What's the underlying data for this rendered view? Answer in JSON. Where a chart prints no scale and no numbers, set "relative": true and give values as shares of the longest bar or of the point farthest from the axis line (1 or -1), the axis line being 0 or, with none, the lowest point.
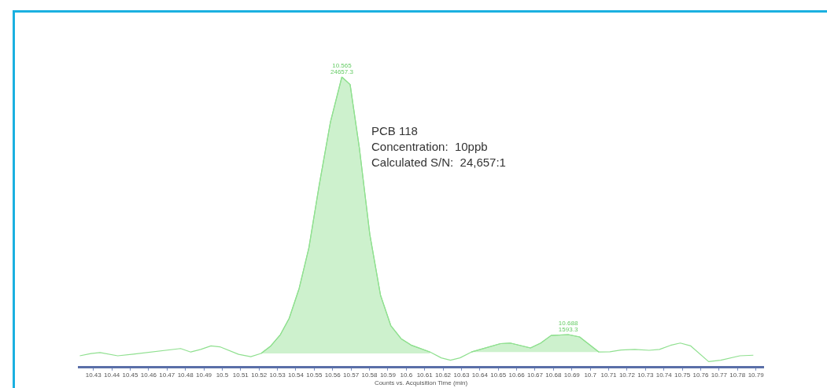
{
  "chart_data": {
    "type": "line",
    "relative": true,
    "xlabel": "Counts vs. Acquisition Time (min)",
    "xlim": [
      10.422,
      10.794
    ],
    "xticks": [
      10.43,
      10.44,
      10.45,
      10.46,
      10.47,
      10.48,
      10.49,
      10.5,
      10.51,
      10.52,
      10.53,
      10.54,
      10.55,
      10.56,
      10.57,
      10.58,
      10.59,
      10.6,
      10.61,
      10.62,
      10.63,
      10.64,
      10.65,
      10.66,
      10.67,
      10.68,
      10.69,
      10.7,
      10.71,
      10.72,
      10.73,
      10.74,
      10.75,
      10.76,
      10.77,
      10.78,
      10.79
    ],
    "grid": false,
    "annotations": [
      "PCB 118",
      "Concentration:  10ppb",
      "Calculated S/N:  24,657:1",
      {
        "text": "10.565\n24657.3",
        "x": 10.565,
        "y": 1
      },
      {
        "text": "10.688\n1593.3",
        "x": 10.688,
        "y": 0.113
      }
    ],
    "series": [
      {
        "type": "line",
        "color": "#90e090",
        "x": [
          10.4226,
          10.4287,
          10.4336,
          10.4432,
          10.4518,
          10.4774,
          10.4829,
          10.4883,
          10.4939,
          10.4987,
          10.5089,
          10.5155,
          10.5211,
          10.5264,
          10.5316,
          10.5364,
          10.5418,
          10.5471,
          10.5527,
          10.5588,
          10.565,
          10.5695,
          10.5746,
          10.5802,
          10.586,
          10.5916,
          10.5972,
          10.6026,
          10.613,
          10.619,
          10.624,
          10.6292,
          10.6354,
          10.6512,
          10.6565,
          10.6675,
          10.6731,
          10.6787,
          10.688,
          10.6942,
          10.7047,
          10.7107,
          10.7167,
          10.7242,
          10.732,
          10.7376,
          10.7436,
          10.7489,
          10.7546,
          10.7643,
          10.7709,
          10.7813,
          10.7886
        ],
        "values": [
          0.04,
          0.048,
          0.051,
          0.04,
          0.046,
          0.065,
          0.053,
          0.062,
          0.074,
          0.071,
          0.045,
          0.037,
          0.048,
          0.074,
          0.113,
          0.169,
          0.272,
          0.412,
          0.628,
          0.845,
          1,
          0.974,
          0.752,
          0.458,
          0.249,
          0.144,
          0.099,
          0.077,
          0.053,
          0.033,
          0.025,
          0.033,
          0.053,
          0.082,
          0.084,
          0.067,
          0.084,
          0.11,
          0.113,
          0.105,
          0.053,
          0.054,
          0.06,
          0.062,
          0.059,
          0.062,
          0.076,
          0.084,
          0.074,
          0.02,
          0.025,
          0.04,
          0.042
        ]
      },
      {
        "type": "area",
        "color": "#90e090",
        "x": [
          10.5211,
          10.5264,
          10.5316,
          10.5364,
          10.5418,
          10.5471,
          10.5527,
          10.5588,
          10.565,
          10.5695,
          10.5746,
          10.5802,
          10.586,
          10.5916,
          10.5972,
          10.6026,
          10.613
        ],
        "values": [
          0.048,
          0.074,
          0.113,
          0.169,
          0.272,
          0.412,
          0.628,
          0.845,
          1,
          0.974,
          0.752,
          0.458,
          0.249,
          0.144,
          0.099,
          0.077,
          0.053
        ]
      },
      {
        "type": "area",
        "color": "#90e090",
        "x": [
          10.6354,
          10.6512,
          10.6565,
          10.6675,
          10.6731,
          10.6787,
          10.688,
          10.6942,
          10.7047
        ],
        "values": [
          0.053,
          0.082,
          0.084,
          0.067,
          0.084,
          0.11,
          0.113,
          0.105,
          0.053
        ]
      }
    ]
  }
}
